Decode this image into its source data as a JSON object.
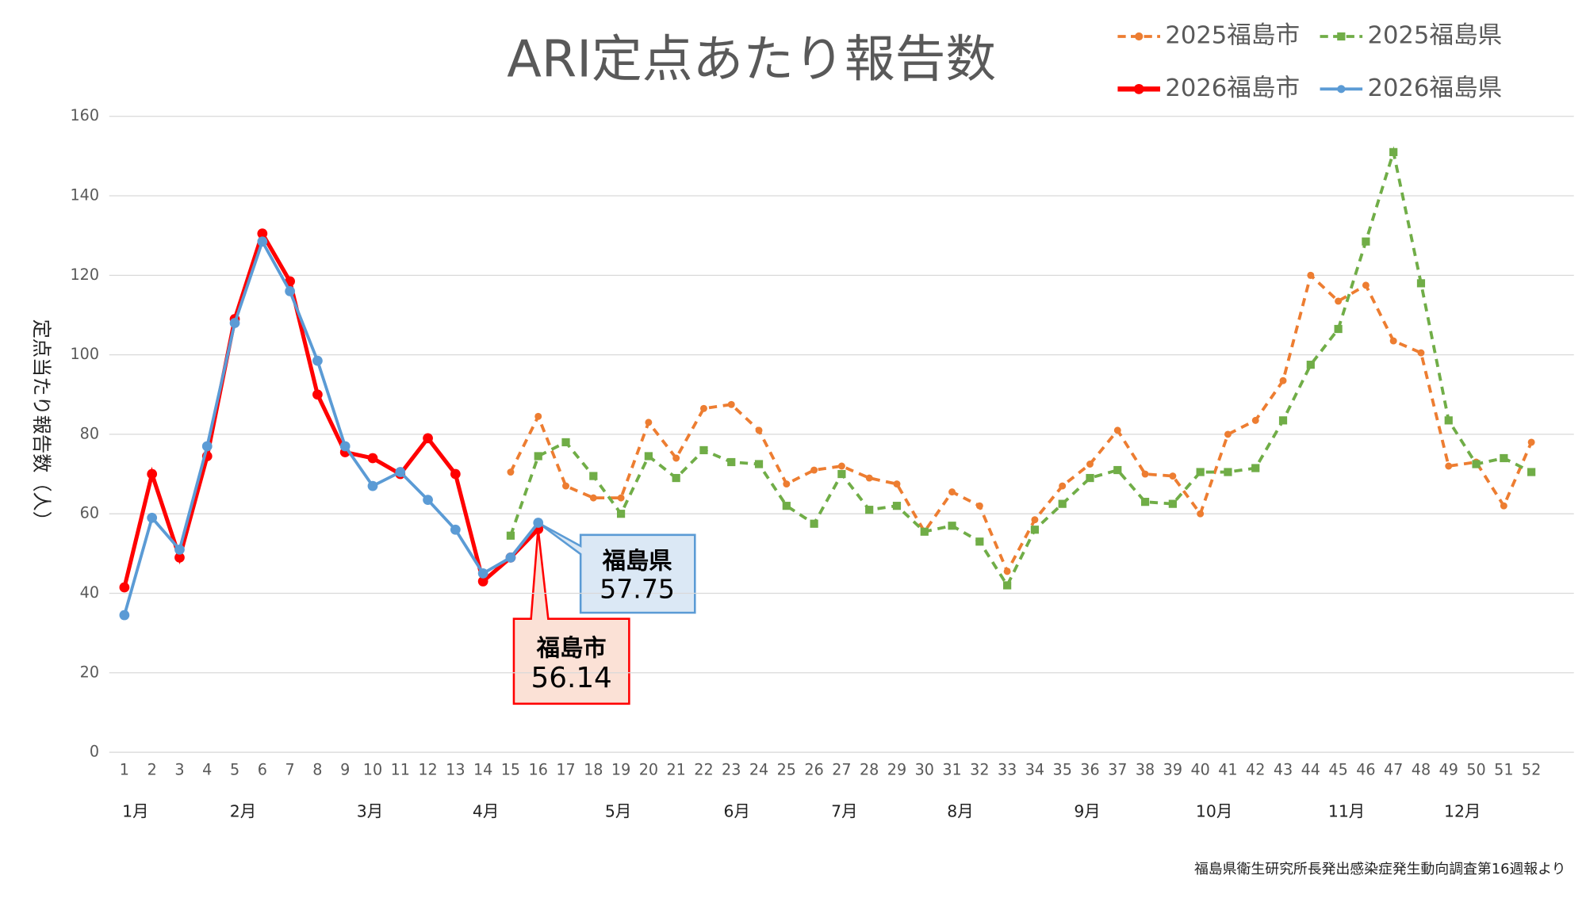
{
  "chart_data": {
    "type": "line",
    "title": "ARI定点あたり報告数",
    "y_label": "定点当たり報告数（人）",
    "source": "福島県衛生研究所長発出感染症発生動向調査第16週報より",
    "categories": [
      "1",
      "2",
      "3",
      "4",
      "5",
      "6",
      "7",
      "8",
      "9",
      "10",
      "11",
      "12",
      "13",
      "14",
      "15",
      "16",
      "17",
      "18",
      "19",
      "20",
      "21",
      "22",
      "23",
      "24",
      "25",
      "26",
      "27",
      "28",
      "29",
      "30",
      "31",
      "32",
      "33",
      "34",
      "35",
      "36",
      "37",
      "38",
      "39",
      "40",
      "41",
      "42",
      "43",
      "44",
      "45",
      "46",
      "47",
      "48",
      "49",
      "50",
      "51",
      "52"
    ],
    "months": [
      "1月",
      "2月",
      "3月",
      "4月",
      "5月",
      "6月",
      "7月",
      "8月",
      "9月",
      "10月",
      "11月",
      "12月"
    ],
    "series": [
      {
        "name": "2025福島市",
        "color": "#ed7d31",
        "dashed": true,
        "marker": "circle",
        "values": [
          null,
          null,
          null,
          null,
          null,
          null,
          null,
          null,
          null,
          null,
          null,
          null,
          null,
          null,
          70.5,
          84.5,
          67,
          64,
          64,
          83,
          74,
          86.5,
          87.5,
          81,
          67.5,
          71,
          72,
          69,
          67.5,
          55.5,
          65.5,
          62,
          45.5,
          58.5,
          67,
          72.5,
          81,
          70,
          69.5,
          60,
          80,
          83.5,
          93.5,
          120,
          113.5,
          117.5,
          103.5,
          100.5,
          72,
          73,
          62,
          78
        ]
      },
      {
        "name": "2025福島県",
        "color": "#70ad47",
        "dashed": true,
        "marker": "square",
        "values": [
          null,
          null,
          null,
          null,
          null,
          null,
          null,
          null,
          null,
          null,
          null,
          null,
          null,
          null,
          54.5,
          74.5,
          78,
          69.5,
          60,
          74.5,
          69,
          76,
          73,
          72.5,
          62,
          57.5,
          70,
          61,
          62,
          55.5,
          57,
          53,
          42,
          56,
          62.5,
          69,
          71,
          63,
          62.5,
          70.5,
          70.5,
          71.5,
          83.5,
          97.5,
          106.5,
          128.5,
          151,
          118,
          83.5,
          72.5,
          74,
          70.5
        ]
      },
      {
        "name": "2026福島市",
        "color": "#ff0000",
        "dashed": false,
        "marker": "circle",
        "values": [
          41.5,
          70,
          49,
          74.5,
          109,
          130.5,
          118.5,
          90,
          75.5,
          74,
          70,
          79,
          70,
          43,
          49,
          56.14,
          null,
          null,
          null,
          null,
          null,
          null,
          null,
          null,
          null,
          null,
          null,
          null,
          null,
          null,
          null,
          null,
          null,
          null,
          null,
          null,
          null,
          null,
          null,
          null,
          null,
          null,
          null,
          null,
          null,
          null,
          null,
          null,
          null,
          null,
          null,
          null
        ]
      },
      {
        "name": "2026福島県",
        "color": "#5b9bd5",
        "dashed": false,
        "marker": "circle",
        "values": [
          34.5,
          59,
          51,
          77,
          108,
          128.5,
          116,
          98.5,
          77,
          67,
          70.5,
          63.5,
          56,
          45,
          49,
          57.75,
          null,
          null,
          null,
          null,
          null,
          null,
          null,
          null,
          null,
          null,
          null,
          null,
          null,
          null,
          null,
          null,
          null,
          null,
          null,
          null,
          null,
          null,
          null,
          null,
          null,
          null,
          null,
          null,
          null,
          null,
          null,
          null,
          null,
          null,
          null,
          null
        ]
      }
    ],
    "annotations": [
      {
        "text": "福島県"
      },
      {
        "text": "福島市"
      }
    ],
    "ylim": [
      0,
      160
    ],
    "yticks": [
      0,
      20,
      40,
      60,
      80,
      100,
      120,
      140,
      160
    ],
    "grid": true
  }
}
